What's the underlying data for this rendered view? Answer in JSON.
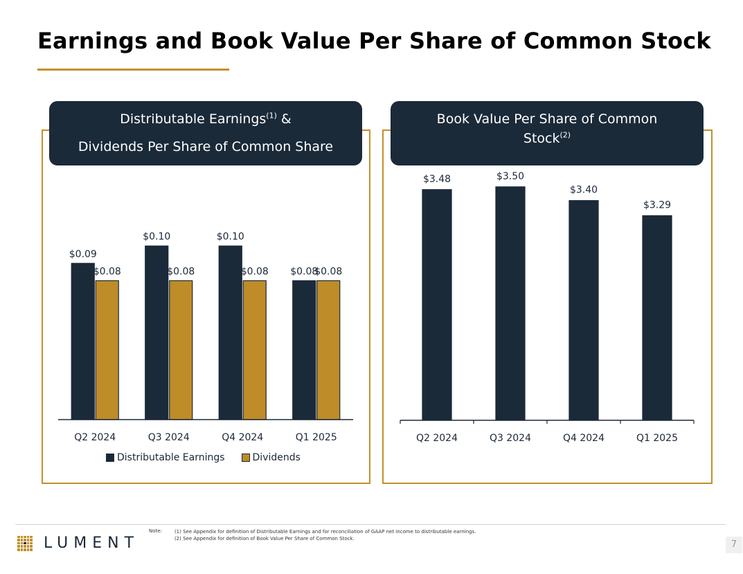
{
  "title": "Earnings and Book Value Per Share of Common Stock",
  "colors": {
    "navy": "#1b2a39",
    "gold": "#c2902a",
    "bar_gold": "#be8c28"
  },
  "left_banner": {
    "line1": "Distributable Earnings",
    "line1_sup": "(1)",
    "line1_suffix": " &",
    "line2": "Dividends Per Share of Common Share"
  },
  "right_banner": {
    "line1": "Book Value Per Share of Common",
    "line2": "Stock",
    "line2_sup": "(2)"
  },
  "chart_data": [
    {
      "type": "bar",
      "title": "Distributable Earnings & Dividends Per Share of Common Share",
      "categories": [
        "Q2 2024",
        "Q3 2024",
        "Q4 2024",
        "Q1 2025"
      ],
      "series": [
        {
          "name": "Distributable Earnings",
          "values": [
            0.09,
            0.1,
            0.1,
            0.08
          ],
          "labels": [
            "$0.09",
            "$0.10",
            "$0.10",
            "$0.08"
          ]
        },
        {
          "name": "Dividends",
          "values": [
            0.08,
            0.08,
            0.08,
            0.08
          ],
          "labels": [
            "$0.08",
            "$0.08",
            "$0.08",
            "$0.08"
          ]
        }
      ],
      "legend": "bottom",
      "ylim": [
        0,
        0.13
      ]
    },
    {
      "type": "bar",
      "title": "Book Value Per Share of Common Stock",
      "categories": [
        "Q2 2024",
        "Q3 2024",
        "Q4 2024",
        "Q1 2025"
      ],
      "series": [
        {
          "name": "Book Value Per Share",
          "values": [
            3.48,
            3.5,
            3.4,
            3.29
          ],
          "labels": [
            "$3.48",
            "$3.50",
            "$3.40",
            "$3.29"
          ]
        }
      ],
      "ylim": [
        1.8,
        3.6
      ]
    }
  ],
  "legend": {
    "item1": "Distributable Earnings",
    "item2": "Dividends"
  },
  "footer": {
    "note_label": "Note:",
    "note1": "(1) See Appendix for definition of Distributable Earnings and for reconciliation of GAAP net income to distributable earnings.",
    "note2": "(2) See Appendix for definition of Book Value Per Share of Common Stock.",
    "logo_text": "LUMENT",
    "page_number": "7"
  }
}
